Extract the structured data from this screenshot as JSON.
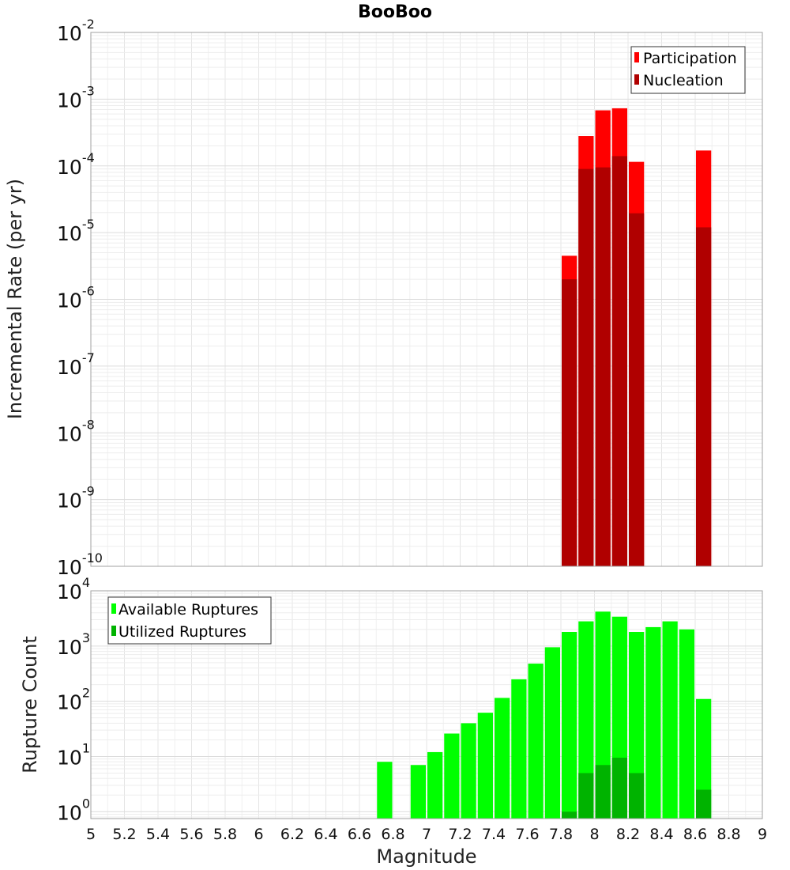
{
  "chart_data": [
    {
      "type": "bar",
      "title": "BooBoo",
      "ylabel": "Incremental Rate (per yr)",
      "xlabel": "",
      "x_range": [
        5,
        9
      ],
      "ylim": [
        1e-10,
        0.01
      ],
      "y_scale": "log",
      "grid": true,
      "legend_position": "top-right",
      "bin_width": 0.1,
      "y_ticks": [
        {
          "base": "10",
          "exp": "-2",
          "value": 0.01
        },
        {
          "base": "10",
          "exp": "-3",
          "value": 0.001
        },
        {
          "base": "10",
          "exp": "-4",
          "value": 0.0001
        },
        {
          "base": "10",
          "exp": "-5",
          "value": 1e-05
        },
        {
          "base": "10",
          "exp": "-6",
          "value": 1e-06
        },
        {
          "base": "10",
          "exp": "-7",
          "value": 1e-07
        },
        {
          "base": "10",
          "exp": "-8",
          "value": 1e-08
        },
        {
          "base": "10",
          "exp": "-9",
          "value": 1e-09
        },
        {
          "base": "10",
          "exp": "-10",
          "value": 1e-10
        }
      ],
      "series": [
        {
          "name": "Participation",
          "color": "#ff0000",
          "x": [
            7.85,
            7.95,
            8.05,
            8.15,
            8.25,
            8.65
          ],
          "values": [
            4.5e-06,
            0.00028,
            0.00068,
            0.00073,
            0.000115,
            0.00017
          ]
        },
        {
          "name": "Nucleation",
          "color": "#b00000",
          "x": [
            7.85,
            7.95,
            8.05,
            8.15,
            8.25,
            8.65
          ],
          "values": [
            2e-06,
            9e-05,
            9.5e-05,
            0.00014,
            1.95e-05,
            1.2e-05
          ]
        }
      ]
    },
    {
      "type": "bar",
      "title": "",
      "ylabel": "Rupture Count",
      "xlabel": "Magnitude",
      "x_range": [
        5,
        9
      ],
      "ylim": [
        0.75,
        10000
      ],
      "y_scale": "log",
      "grid": true,
      "legend_position": "top-left",
      "bin_width": 0.1,
      "x_tick_labels": [
        "5",
        "5.2",
        "5.4",
        "5.6",
        "5.8",
        "6",
        "6.2",
        "6.4",
        "6.6",
        "6.8",
        "7",
        "7.2",
        "7.4",
        "7.6",
        "7.8",
        "8",
        "8.2",
        "8.4",
        "8.6",
        "8.8",
        "9"
      ],
      "y_ticks": [
        {
          "base": "10",
          "exp": "4",
          "value": 10000
        },
        {
          "base": "10",
          "exp": "3",
          "value": 1000
        },
        {
          "base": "10",
          "exp": "2",
          "value": 100
        },
        {
          "base": "10",
          "exp": "1",
          "value": 10
        },
        {
          "base": "10",
          "exp": "0",
          "value": 1
        }
      ],
      "series": [
        {
          "name": "Available Ruptures",
          "color": "#00ff00",
          "x": [
            6.75,
            6.95,
            7.05,
            7.15,
            7.25,
            7.35,
            7.45,
            7.55,
            7.65,
            7.75,
            7.85,
            7.95,
            8.05,
            8.15,
            8.25,
            8.35,
            8.45,
            8.55,
            8.65
          ],
          "values": [
            8,
            7,
            12,
            26,
            40,
            62,
            115,
            250,
            480,
            950,
            1800,
            2800,
            4200,
            3400,
            1800,
            2200,
            2800,
            2000,
            110
          ]
        },
        {
          "name": "Utilized Ruptures",
          "color": "#00b300",
          "x": [
            7.85,
            7.95,
            8.05,
            8.15,
            8.25,
            8.65
          ],
          "values": [
            1,
            5,
            7,
            9.5,
            5,
            2.5
          ]
        }
      ]
    }
  ]
}
